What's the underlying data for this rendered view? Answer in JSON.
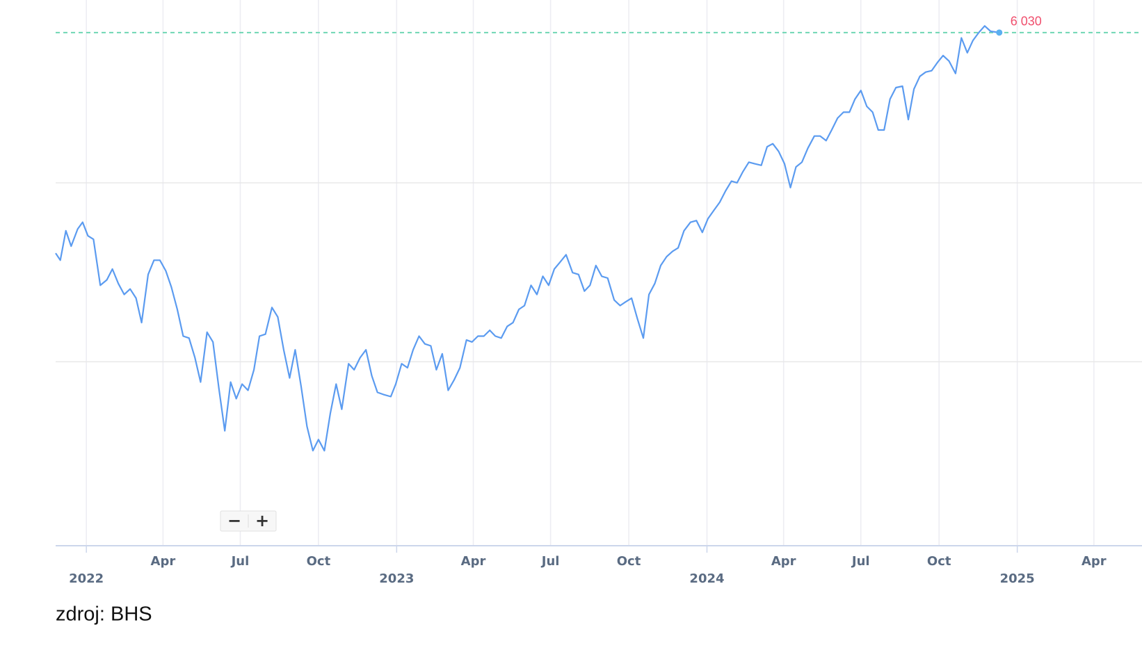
{
  "chart_data": {
    "type": "line",
    "color": "#5b9bf0",
    "x": [
      2021.901,
      2021.916,
      2021.934,
      2021.951,
      2021.972,
      2021.988,
      2022.005,
      2022.023,
      2022.045,
      2022.066,
      2022.084,
      2022.103,
      2022.122,
      2022.141,
      2022.16,
      2022.178,
      2022.199,
      2022.218,
      2022.237,
      2022.256,
      2022.274,
      2022.293,
      2022.312,
      2022.331,
      2022.35,
      2022.368,
      2022.389,
      2022.408,
      2022.427,
      2022.446,
      2022.465,
      2022.483,
      2022.502,
      2022.521,
      2022.54,
      2022.558,
      2022.577,
      2022.598,
      2022.617,
      2022.636,
      2022.655,
      2022.673,
      2022.692,
      2022.711,
      2022.73,
      2022.748,
      2022.767,
      2022.786,
      2022.805,
      2022.823,
      2022.845,
      2022.863,
      2022.882,
      2022.901,
      2022.92,
      2022.938,
      2022.957,
      2022.981,
      2022.997,
      2023.016,
      2023.035,
      2023.053,
      2023.072,
      2023.091,
      2023.11,
      2023.128,
      2023.147,
      2023.166,
      2023.185,
      2023.204,
      2023.225,
      2023.243,
      2023.262,
      2023.281,
      2023.3,
      2023.318,
      2023.337,
      2023.356,
      2023.375,
      2023.394,
      2023.412,
      2023.433,
      2023.452,
      2023.471,
      2023.49,
      2023.508,
      2023.527,
      2023.546,
      2023.567,
      2023.586,
      2023.605,
      2023.623,
      2023.642,
      2023.661,
      2023.68,
      2023.701,
      2023.72,
      2023.738,
      2023.757,
      2023.776,
      2023.795,
      2023.813,
      2023.832,
      2023.851,
      2023.87,
      2023.889,
      2023.907,
      2023.926,
      2023.947,
      2023.966,
      2023.985,
      2024.003,
      2024.022,
      2024.041,
      2024.06,
      2024.079,
      2024.097,
      2024.116,
      2024.135,
      2024.154,
      2024.175,
      2024.194,
      2024.212,
      2024.231,
      2024.25,
      2024.269,
      2024.287,
      2024.306,
      2024.325,
      2024.346,
      2024.365,
      2024.384,
      2024.402,
      2024.421,
      2024.44,
      2024.459,
      2024.477,
      2024.496,
      2024.515,
      2024.534,
      2024.552,
      2024.571,
      2024.59,
      2024.609,
      2024.63,
      2024.649,
      2024.667,
      2024.686,
      2024.705,
      2024.724,
      2024.743,
      2024.761,
      2024.78,
      2024.801,
      2024.82,
      2024.839,
      2024.857,
      2024.876,
      2024.895,
      2024.914,
      2024.942
    ],
    "values": [
      4580,
      4540,
      4710,
      4620,
      4720,
      4760,
      4680,
      4660,
      4400,
      4430,
      4490,
      4410,
      4350,
      4380,
      4330,
      4200,
      4460,
      4540,
      4540,
      4480,
      4390,
      4270,
      4130,
      4120,
      4020,
      3900,
      4150,
      4100,
      3870,
      3670,
      3900,
      3820,
      3890,
      3860,
      3960,
      4130,
      4140,
      4280,
      4230,
      4060,
      3920,
      4060,
      3880,
      3690,
      3580,
      3630,
      3580,
      3750,
      3890,
      3770,
      3990,
      3960,
      4020,
      4060,
      3930,
      3850,
      3840,
      3830,
      3890,
      3990,
      3970,
      4060,
      4130,
      4090,
      4080,
      3960,
      4040,
      3860,
      3910,
      3970,
      4110,
      4100,
      4130,
      4130,
      4160,
      4130,
      4120,
      4180,
      4200,
      4270,
      4290,
      4400,
      4350,
      4450,
      4400,
      4490,
      4530,
      4571,
      4470,
      4460,
      4368,
      4400,
      4510,
      4450,
      4440,
      4320,
      4290,
      4310,
      4330,
      4220,
      4120,
      4350,
      4410,
      4510,
      4560,
      4590,
      4610,
      4710,
      4760,
      4770,
      4700,
      4780,
      4830,
      4880,
      4950,
      5010,
      5000,
      5070,
      5130,
      5120,
      5110,
      5230,
      5250,
      5200,
      5120,
      4970,
      5100,
      5130,
      5220,
      5300,
      5300,
      5270,
      5340,
      5420,
      5460,
      5460,
      5550,
      5610,
      5500,
      5460,
      5340,
      5340,
      5550,
      5630,
      5640,
      5410,
      5620,
      5710,
      5740,
      5750,
      5810,
      5860,
      5820,
      5730,
      5990,
      5880,
      5970,
      6030,
      6080,
      6040,
      6030
    ],
    "xlim": [
      2021.901,
      2025.402
    ],
    "xticks": [
      {
        "value": 2022,
        "label": "2022"
      },
      {
        "value": 2022.247,
        "label": "Apr"
      },
      {
        "value": 2022.496,
        "label": "Jul"
      },
      {
        "value": 2022.748,
        "label": "Oct"
      },
      {
        "value": 2023,
        "label": "2023"
      },
      {
        "value": 2023.247,
        "label": "Apr"
      },
      {
        "value": 2023.496,
        "label": "Jul"
      },
      {
        "value": 2023.748,
        "label": "Oct"
      },
      {
        "value": 2024,
        "label": "2024"
      },
      {
        "value": 2024.247,
        "label": "Apr"
      },
      {
        "value": 2024.496,
        "label": "Jul"
      },
      {
        "value": 2024.748,
        "label": "Oct"
      },
      {
        "value": 2025,
        "label": "2025"
      },
      {
        "value": 2025.247,
        "label": "Apr"
      }
    ],
    "ylim": [
      3180,
      6280
    ],
    "ylog": true,
    "yticks": [
      4000,
      5000
    ],
    "grid": true,
    "reference_line": {
      "value": 6030,
      "label": "6 030",
      "color": "#6fd6b4",
      "label_color": "#f0506e"
    },
    "zoom_buttons": [
      "−",
      "+"
    ],
    "source": "zdroj: BHS"
  }
}
